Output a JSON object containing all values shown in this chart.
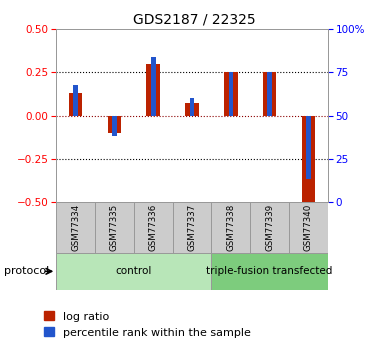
{
  "title": "GDS2187 / 22325",
  "samples": [
    "GSM77334",
    "GSM77335",
    "GSM77336",
    "GSM77337",
    "GSM77338",
    "GSM77339",
    "GSM77340"
  ],
  "log_ratio": [
    0.13,
    -0.1,
    0.3,
    0.07,
    0.25,
    0.25,
    -0.5
  ],
  "percentile_rank": [
    0.68,
    0.38,
    0.84,
    0.6,
    0.75,
    0.75,
    0.13
  ],
  "groups": [
    {
      "label": "control",
      "indices": [
        0,
        1,
        2,
        3
      ],
      "color": "#b8e6b8"
    },
    {
      "label": "triple-fusion transfected",
      "indices": [
        4,
        5,
        6
      ],
      "color": "#7dcc7d"
    }
  ],
  "ylim": [
    -0.5,
    0.5
  ],
  "yticks_left": [
    -0.5,
    -0.25,
    0,
    0.25,
    0.5
  ],
  "yticks_right": [
    0,
    25,
    50,
    75,
    100
  ],
  "red_bar_width": 0.35,
  "blue_bar_width": 0.12,
  "log_ratio_color": "#bb2200",
  "percentile_color": "#2255cc",
  "dotted_lines_black": [
    0.25,
    -0.25
  ],
  "dotted_line_red": 0.0,
  "label_log_ratio": "log ratio",
  "label_percentile": "percentile rank within the sample",
  "protocol_label": "protocol",
  "sample_box_color": "#cccccc",
  "title_fontsize": 10,
  "tick_fontsize": 7.5,
  "legend_fontsize": 8
}
